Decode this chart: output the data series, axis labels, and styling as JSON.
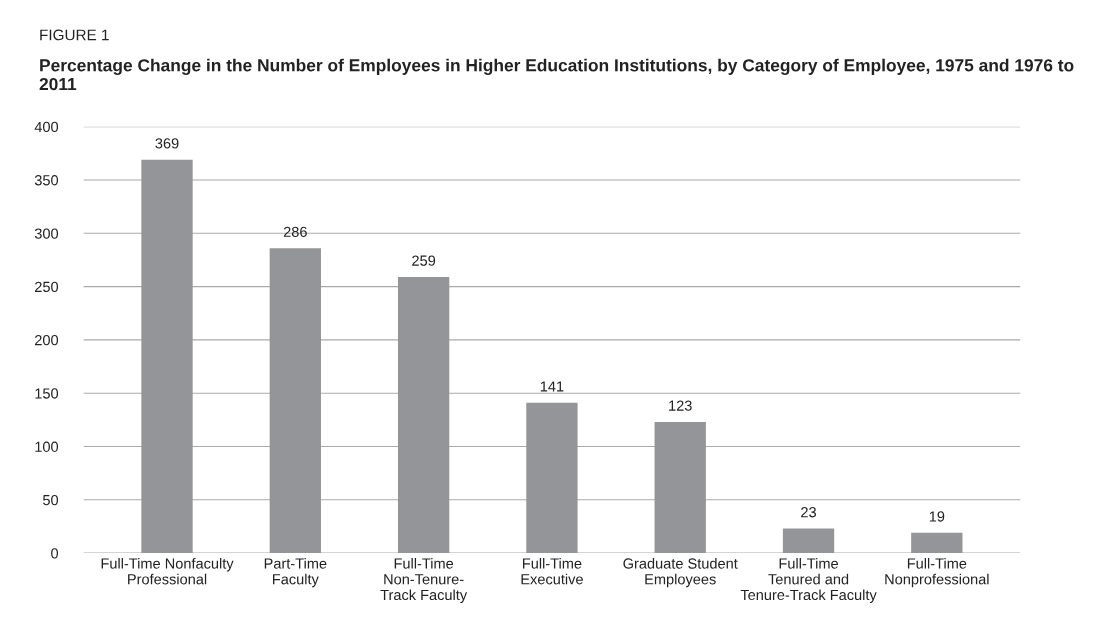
{
  "chart_data": {
    "type": "bar",
    "title": "Percentage Change in the Number of Employees in Higher Education Institutions, by Category of Employee, 1975 and 1976 to 2011",
    "annotations": [
      "FIGURE 1"
    ],
    "categories": [
      "Full-Time Nonfaculty\nProfessional",
      "Part-Time\nFaculty",
      "Full-Time\nNon-Tenure-\nTrack Faculty",
      "Full-Time\nExecutive",
      "Graduate Student\nEmployees",
      "Full-Time\nTenured and\nTenure-Track Faculty",
      "Full-Time\nNonprofessional"
    ],
    "values": [
      369,
      286,
      259,
      141,
      123,
      23,
      19
    ],
    "color": "#939598",
    "ylim": [
      0,
      400
    ],
    "yticks": [
      0,
      50,
      100,
      150,
      200,
      250,
      300,
      350,
      400
    ],
    "grid": "y",
    "data_labels": true
  }
}
